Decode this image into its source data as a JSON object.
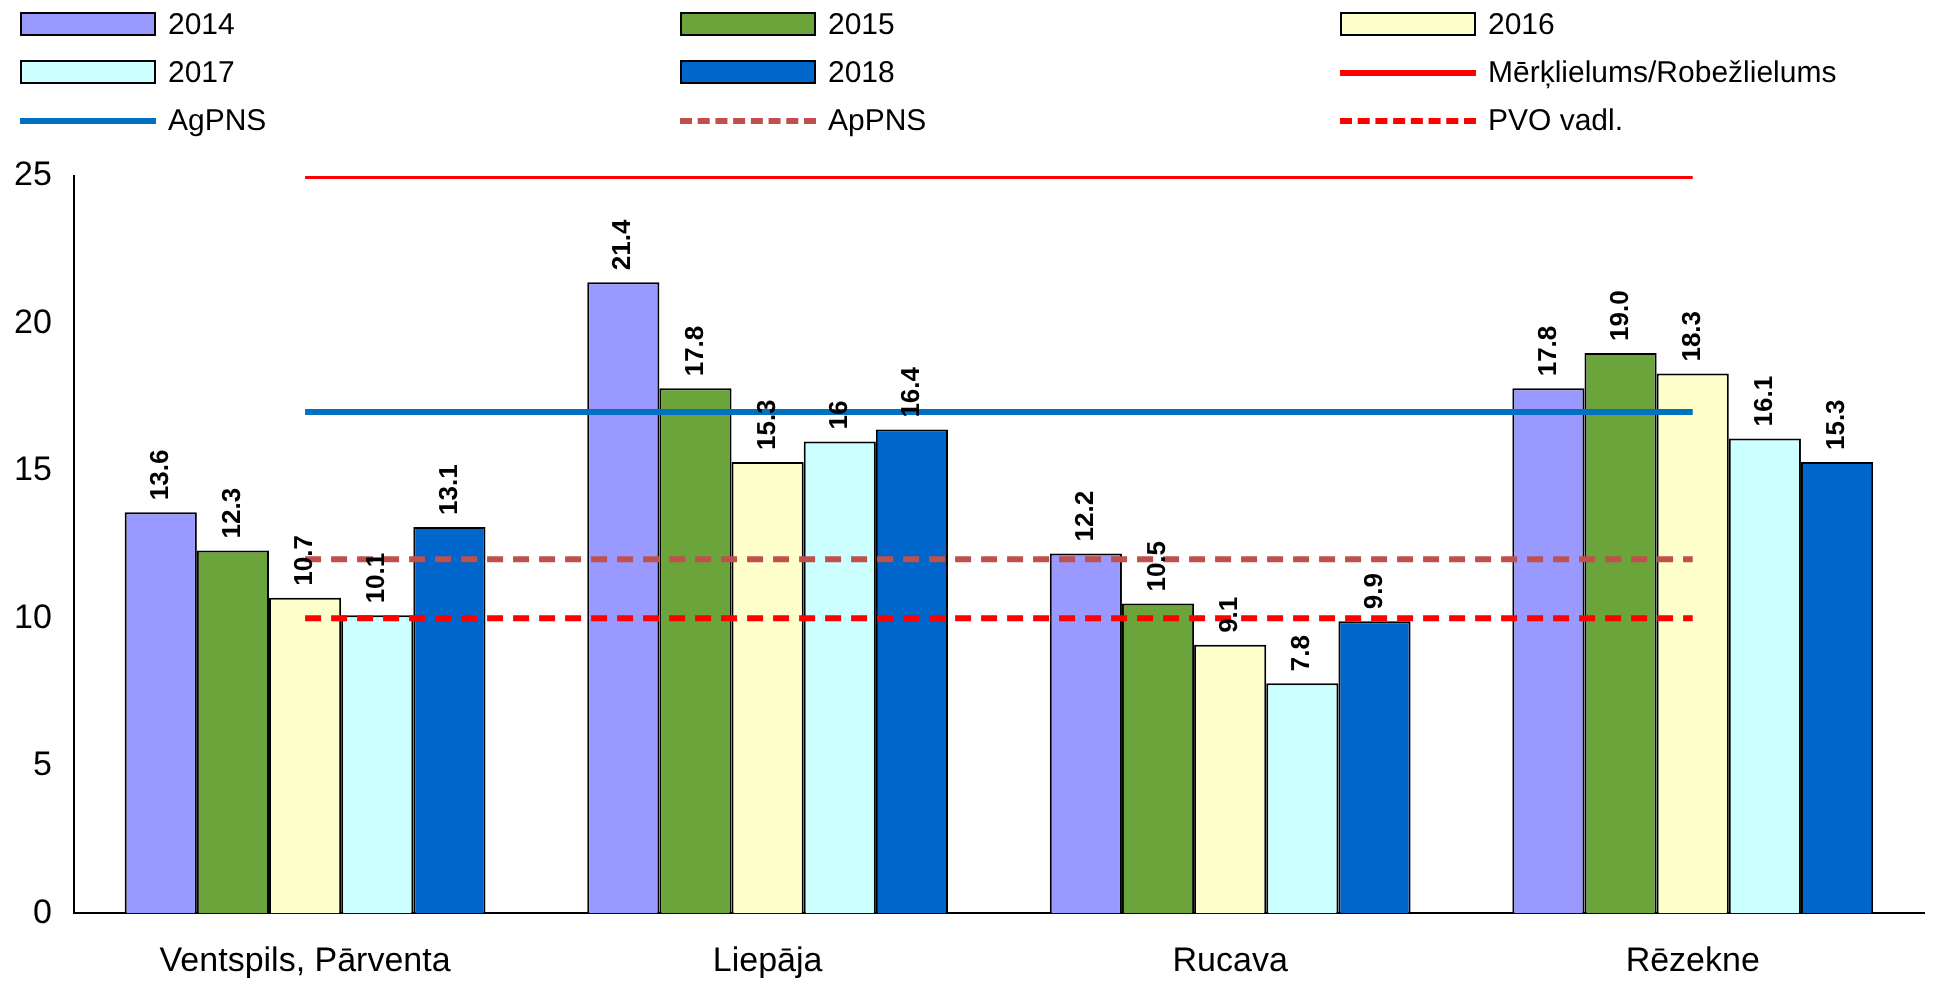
{
  "chart_data": {
    "type": "bar",
    "categories": [
      "Ventspils, Pārventa",
      "Liepāja",
      "Rucava",
      "Rēzekne"
    ],
    "ylim": [
      0,
      25
    ],
    "yticks": [
      0,
      5,
      10,
      15,
      20,
      25
    ],
    "grid": false,
    "legend": "top",
    "series": [
      {
        "name": "2014",
        "color": "#9999ff",
        "values": [
          13.6,
          21.4,
          12.2,
          17.8
        ],
        "value_labels": [
          "13.6",
          "21.4",
          "12.2",
          "17.8"
        ]
      },
      {
        "name": "2015",
        "color": "#6aa43a",
        "values": [
          12.3,
          17.8,
          10.5,
          19.0
        ],
        "value_labels": [
          "12.3",
          "17.8",
          "10.5",
          "19.0"
        ]
      },
      {
        "name": "2016",
        "color": "#ffffcc",
        "values": [
          10.7,
          15.3,
          9.1,
          18.3
        ],
        "value_labels": [
          "10.7",
          "15.3",
          "9.1",
          "18.3"
        ]
      },
      {
        "name": "2017",
        "color": "#ccffff",
        "values": [
          10.1,
          16,
          7.8,
          16.1
        ],
        "value_labels": [
          "10.1",
          "16",
          "7.8",
          "16.1"
        ]
      },
      {
        "name": "2018",
        "color": "#0066cc",
        "values": [
          13.1,
          16.4,
          9.9,
          15.3
        ],
        "value_labels": [
          "13.1",
          "16.4",
          "9.9",
          "15.3"
        ]
      },
      {
        "name": "Mērķlielums/Robežlielums",
        "type": "line",
        "color": "#ff0000",
        "line_style": "solid",
        "values": [
          25,
          25,
          25,
          25
        ]
      },
      {
        "name": "AgPNS",
        "type": "line",
        "color": "#0070c0",
        "line_style": "solid",
        "values": [
          17,
          17,
          17,
          17
        ]
      },
      {
        "name": "ApPNS",
        "type": "line",
        "color": "#c0504d",
        "line_style": "dashed",
        "values": [
          12,
          12,
          12,
          12
        ]
      },
      {
        "name": "PVO vadl.",
        "type": "line",
        "color": "#ff0000",
        "line_style": "dashed",
        "values": [
          10,
          10,
          10,
          10
        ]
      }
    ]
  }
}
